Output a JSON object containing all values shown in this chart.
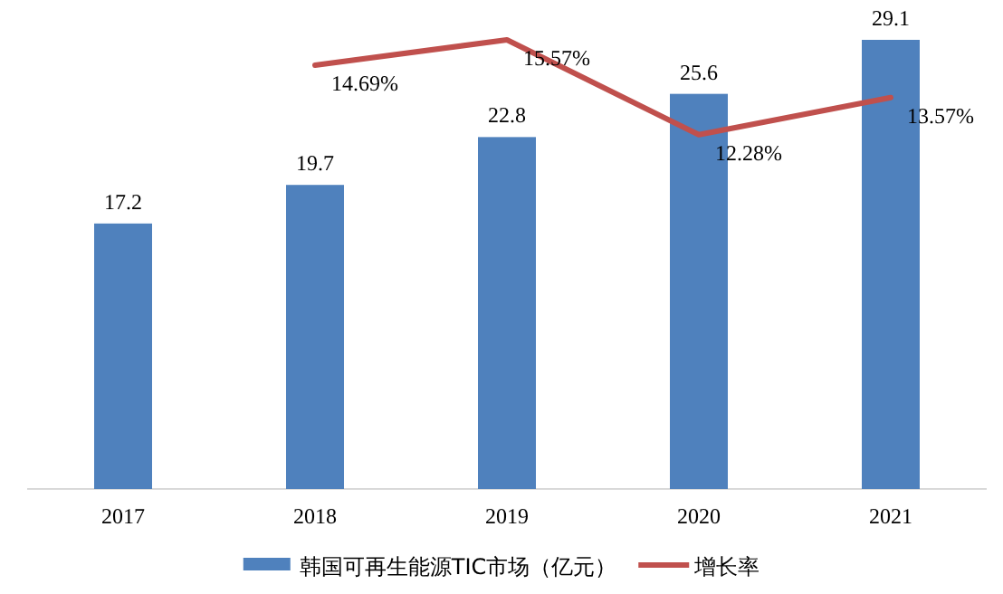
{
  "chart_data": {
    "type": "bar",
    "categories": [
      "2017",
      "2018",
      "2019",
      "2020",
      "2021"
    ],
    "legend": "bottom",
    "series": [
      {
        "name": "韩国可再生能源TIC市场（亿元）",
        "color": "#4f81bd",
        "values": [
          17.2,
          19.7,
          22.8,
          25.6,
          29.1
        ],
        "value_labels": [
          "17.2",
          "19.7",
          "22.8",
          "25.6",
          "29.1"
        ]
      },
      {
        "name": "增长率",
        "type": "line",
        "axis": "y2",
        "color": "#c0504d",
        "values": [
          null,
          14.69,
          15.57,
          12.28,
          13.57
        ],
        "value_labels": [
          null,
          "14.69%",
          "15.57%",
          "12.28%",
          "13.57%"
        ]
      }
    ]
  }
}
